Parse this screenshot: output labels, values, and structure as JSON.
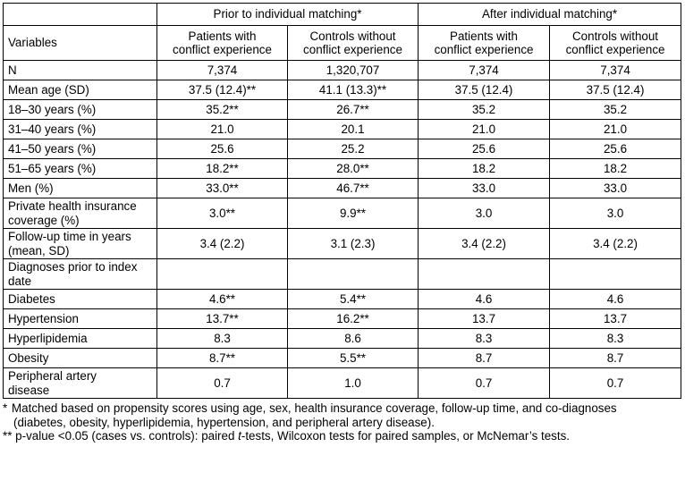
{
  "table": {
    "group_headers": {
      "prior": "Prior to individual matching*",
      "after": "After individual matching*"
    },
    "variables_label": "Variables",
    "column_headers": [
      [
        "Patients with",
        "conflict experience"
      ],
      [
        "Controls without",
        "conflict experience"
      ],
      [
        "Patients with",
        "conflict experience"
      ],
      [
        "Controls without",
        "conflict experience"
      ]
    ],
    "rows": [
      {
        "label": [
          "N"
        ],
        "values": [
          "7,374",
          "1,320,707",
          "7,374",
          "7,374"
        ]
      },
      {
        "label": [
          "Mean age (SD)"
        ],
        "values": [
          "37.5 (12.4)**",
          "41.1 (13.3)**",
          "37.5 (12.4)",
          "37.5 (12.4)"
        ]
      },
      {
        "label": [
          "18–30 years (%)"
        ],
        "values": [
          "35.2**",
          "26.7**",
          "35.2",
          "35.2"
        ]
      },
      {
        "label": [
          "31–40 years (%)"
        ],
        "values": [
          "21.0",
          "20.1",
          "21.0",
          "21.0"
        ]
      },
      {
        "label": [
          "41–50 years (%)"
        ],
        "values": [
          "25.6",
          "25.2",
          "25.6",
          "25.6"
        ]
      },
      {
        "label": [
          "51–65 years (%)"
        ],
        "values": [
          "18.2**",
          "28.0**",
          "18.2",
          "18.2"
        ]
      },
      {
        "label": [
          "Men (%)"
        ],
        "values": [
          "33.0**",
          "46.7**",
          "33.0",
          "33.0"
        ]
      },
      {
        "label": [
          "Private health insurance",
          "coverage (%)"
        ],
        "values": [
          "3.0**",
          "9.9**",
          "3.0",
          "3.0"
        ]
      },
      {
        "label": [
          "Follow-up time in years",
          "(mean, SD)"
        ],
        "values": [
          "3.4 (2.2)",
          "3.1 (2.3)",
          "3.4 (2.2)",
          "3.4 (2.2)"
        ]
      },
      {
        "label": [
          "Diagnoses prior to index",
          "date"
        ],
        "values": [
          "",
          "",
          "",
          ""
        ],
        "section": true
      },
      {
        "label": [
          "Diabetes"
        ],
        "values": [
          "4.6**",
          "5.4**",
          "4.6",
          "4.6"
        ]
      },
      {
        "label": [
          "Hypertension"
        ],
        "values": [
          "13.7**",
          "16.2**",
          "13.7",
          "13.7"
        ]
      },
      {
        "label": [
          "Hyperlipidemia"
        ],
        "values": [
          "8.3",
          "8.6",
          "8.3",
          "8.3"
        ]
      },
      {
        "label": [
          "Obesity"
        ],
        "values": [
          "8.7**",
          "5.5**",
          "8.7",
          "8.7"
        ]
      },
      {
        "label": [
          "Peripheral artery",
          "disease"
        ],
        "values": [
          "0.7",
          "1.0",
          "0.7",
          "0.7"
        ]
      }
    ]
  },
  "footnotes": {
    "note1_mark": "*",
    "note1_lines": [
      "Matched based on propensity scores using age, sex, health insurance coverage, follow-up time, and co-diagnoses",
      "(diabetes, obesity, hyperlipidemia, hypertension, and peripheral artery disease)."
    ],
    "note2_mark": "**",
    "note2_before": "p-value <0.05 (cases vs. controls): paired ",
    "note2_italic": "t",
    "note2_after": "-tests, Wilcoxon tests for paired samples, or McNemar’s tests."
  }
}
